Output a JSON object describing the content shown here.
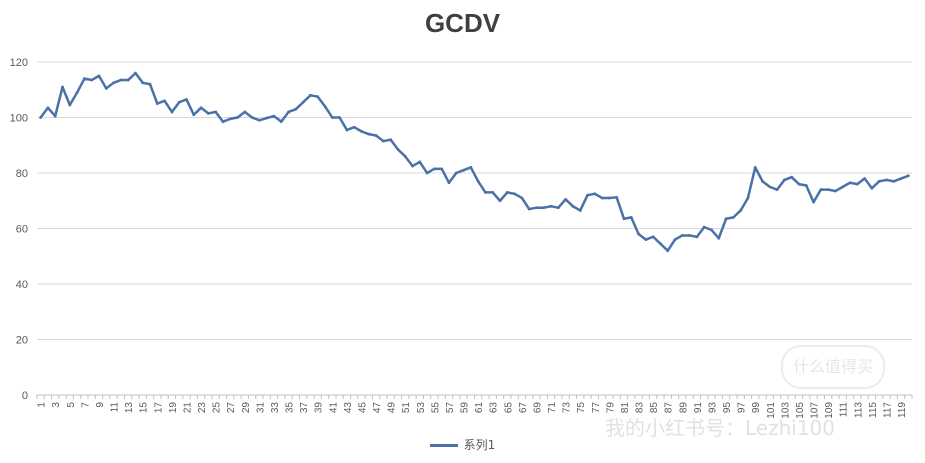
{
  "chart_data": {
    "type": "line",
    "title": "GCDV",
    "xlabel": "",
    "ylabel": "",
    "ylim": [
      0,
      120
    ],
    "yticks": [
      0,
      20,
      40,
      60,
      80,
      100,
      120
    ],
    "grid": true,
    "legend_position": "bottom",
    "x": [
      1,
      2,
      3,
      4,
      5,
      6,
      7,
      8,
      9,
      10,
      11,
      12,
      13,
      14,
      15,
      16,
      17,
      18,
      19,
      20,
      21,
      22,
      23,
      24,
      25,
      26,
      27,
      28,
      29,
      30,
      31,
      32,
      33,
      34,
      35,
      36,
      37,
      38,
      39,
      40,
      41,
      42,
      43,
      44,
      45,
      46,
      47,
      48,
      49,
      50,
      51,
      52,
      53,
      54,
      55,
      56,
      57,
      58,
      59,
      60,
      61,
      62,
      63,
      64,
      65,
      66,
      67,
      68,
      69,
      70,
      71,
      72,
      73,
      74,
      75,
      76,
      77,
      78,
      79,
      80,
      81,
      82,
      83,
      84,
      85,
      86,
      87,
      88,
      89,
      90,
      91,
      92,
      93,
      94,
      95,
      96,
      97,
      98,
      99,
      100,
      101,
      102,
      103,
      104,
      105,
      106,
      107,
      108,
      109,
      110,
      111,
      112,
      113,
      114,
      115,
      116,
      117,
      118,
      119,
      120
    ],
    "x_tick_labels": [
      "1",
      "3",
      "5",
      "7",
      "9",
      "11",
      "13",
      "15",
      "17",
      "19",
      "21",
      "23",
      "25",
      "27",
      "29",
      "31",
      "33",
      "35",
      "37",
      "39",
      "41",
      "43",
      "45",
      "47",
      "49",
      "51",
      "53",
      "55",
      "57",
      "59",
      "61",
      "63",
      "65",
      "67",
      "69",
      "71",
      "73",
      "75",
      "77",
      "79",
      "81",
      "83",
      "85",
      "87",
      "89",
      "91",
      "93",
      "95",
      "97",
      "99",
      "101",
      "103",
      "105",
      "107",
      "109",
      "111",
      "113",
      "115",
      "117",
      "119"
    ],
    "series": [
      {
        "name": "系列1",
        "color": "#4a72a8",
        "values": [
          100,
          103.5,
          100.5,
          111,
          104.5,
          109,
          114,
          113.5,
          115,
          110.5,
          112.5,
          113.5,
          113.5,
          116,
          112.5,
          112,
          105,
          106,
          102,
          105.5,
          106.5,
          101,
          103.5,
          101.5,
          102,
          98.5,
          99.5,
          100,
          102,
          100,
          99,
          99.8,
          100.5,
          98.5,
          102,
          103,
          105.5,
          108,
          107.5,
          104,
          100,
          100,
          95.5,
          96.5,
          95,
          94,
          93.5,
          91.5,
          92,
          88.5,
          86,
          82.5,
          84,
          80,
          81.5,
          81.5,
          76.5,
          80,
          81,
          82,
          77,
          73,
          73,
          70,
          73,
          72.5,
          71,
          67,
          67.5,
          67.5,
          68,
          67.5,
          70.5,
          68,
          66.5,
          72,
          72.5,
          71,
          71,
          71.2,
          63.5,
          64,
          58,
          56,
          57,
          54.5,
          52,
          56,
          57.5,
          57.5,
          57,
          60.5,
          59.5,
          56.5,
          63.5,
          64,
          66.5,
          71,
          82,
          77,
          75,
          74,
          77.5,
          78.5,
          76,
          75.5,
          69.5,
          74,
          74,
          73.5,
          75,
          76.5,
          76,
          78,
          74.5,
          77,
          77.5,
          77,
          78,
          79
        ]
      }
    ]
  },
  "legend": {
    "label": "系列1"
  },
  "watermark": {
    "badge": "什么值得买",
    "text": "我的小红书号：Lezhi100"
  }
}
